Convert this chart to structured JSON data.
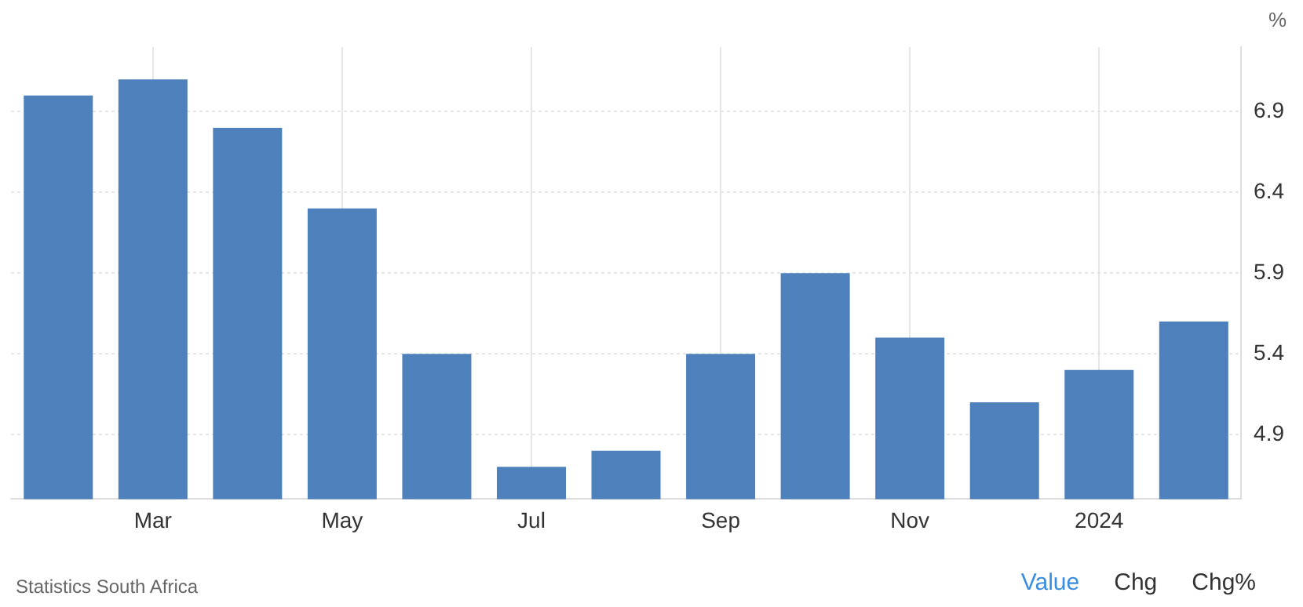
{
  "chart_data": {
    "type": "bar",
    "categories": [
      null,
      "Mar",
      null,
      "May",
      null,
      "Jul",
      null,
      "Sep",
      null,
      "Nov",
      null,
      "2024",
      null
    ],
    "values": [
      7.0,
      7.1,
      6.8,
      6.3,
      5.4,
      4.7,
      4.8,
      5.4,
      5.9,
      5.5,
      5.1,
      5.3,
      5.6
    ],
    "color": "#4e80bb",
    "ylabel": "%",
    "ylim": [
      4.5,
      7.3
    ],
    "yticks": [
      4.9,
      5.4,
      5.9,
      6.4,
      6.9
    ],
    "grid": true,
    "legend": false,
    "annotations": [
      "Statistics South Africa",
      "Value",
      "Chg",
      "Chg%"
    ]
  }
}
